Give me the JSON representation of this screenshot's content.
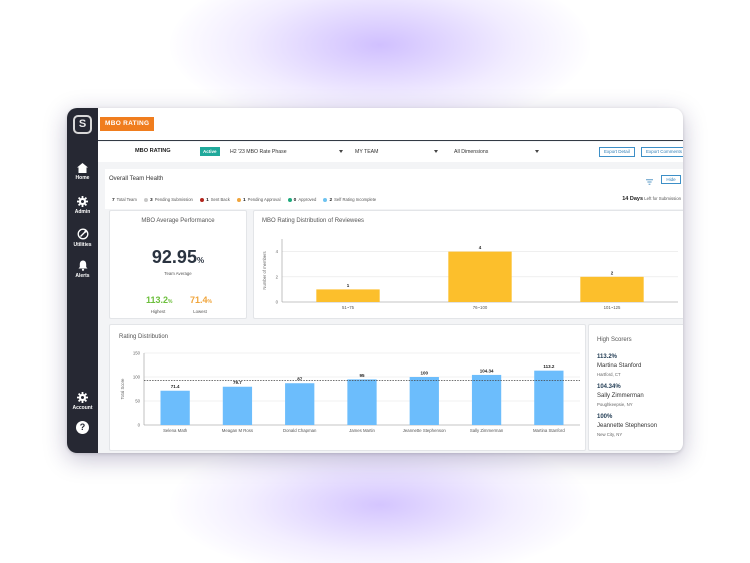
{
  "app": {
    "brand_label": "MBO RATING"
  },
  "sidebar": {
    "logo_glyph": "S",
    "items": [
      {
        "label": "Home",
        "icon": "home-icon"
      },
      {
        "label": "Admin",
        "icon": "gear-icon"
      },
      {
        "label": "Utilities",
        "icon": "utilities-icon"
      },
      {
        "label": "Alerts",
        "icon": "bell-icon"
      },
      {
        "label": "Account",
        "icon": "gear-icon"
      }
    ],
    "help_glyph": "?"
  },
  "filterbar": {
    "title": "MBO RATING",
    "status_chip": "Active",
    "phase_select": "H2 '23 MBO Rate Phase",
    "team_select": "MY TEAM",
    "dimensions_select": "All Dimensions",
    "export_detail": "Export Detail",
    "export_comments": "Export Comments"
  },
  "health": {
    "title": "Overall Team Health",
    "hide_label": "Hide",
    "statuses": [
      {
        "count": "7",
        "label": "Total Team",
        "color": ""
      },
      {
        "count": "3",
        "label": "Pending Submission",
        "color": "#c8c8c8"
      },
      {
        "count": "1",
        "label": "Sent Back",
        "color": "#b3261e"
      },
      {
        "count": "1",
        "label": "Pending Approval",
        "color": "#f0a53c"
      },
      {
        "count": "0",
        "label": "Approved",
        "color": "#1ea97c"
      },
      {
        "count": "2",
        "label": "Self Rating Incomplete",
        "color": "#6ec3f0"
      }
    ],
    "days_value": "14 Days",
    "days_label": "Left for Submission"
  },
  "performance": {
    "title": "MBO Average Performance",
    "average_value": "92.95",
    "average_unit": "%",
    "average_label": "Team Average",
    "highest_value": "113.2",
    "highest_unit": "%",
    "highest_label": "Highest",
    "lowest_value": "71.4",
    "lowest_unit": "%",
    "lowest_label": "Lowest"
  },
  "chart_data": [
    {
      "type": "bar",
      "title": "MBO Rating Distribution of Reviewees",
      "ylabel": "Number of members",
      "xlabel": "",
      "categories": [
        "51~75",
        "76~100",
        "101~125"
      ],
      "values": [
        1,
        4,
        2
      ],
      "data_labels": [
        "1",
        "4",
        "2"
      ],
      "yticks": [
        "0",
        "2",
        "4"
      ],
      "ylim": [
        0,
        5
      ],
      "color": "#fcbf2c",
      "grid": true
    },
    {
      "type": "bar",
      "title": "Rating Distribution",
      "ylabel": "Total Score",
      "xlabel": "",
      "categories": [
        "Selena Math",
        "Meagan M Ross",
        "Donald Chapman",
        "James Martin",
        "Jeannette Stephenson",
        "Sally Zimmerman",
        "Martina Stanford"
      ],
      "values": [
        71.4,
        79.7,
        87,
        95,
        100,
        104.34,
        113.2
      ],
      "data_labels": [
        "71.4",
        "79.7",
        "87",
        "95",
        "100",
        "104.34",
        "113.2"
      ],
      "yticks": [
        "0",
        "50",
        "100",
        "150"
      ],
      "ylim": [
        0,
        150
      ],
      "reference_line": 92.95,
      "color": "#6cbdfc",
      "grid": true
    }
  ],
  "high_scorers": {
    "title": "High Scorers",
    "items": [
      {
        "value": "113.2%",
        "name": "Martina Stanford",
        "location": "Hartford, CT"
      },
      {
        "value": "104.34%",
        "name": "Sally Zimmerman",
        "location": "Poughkeepsie, NY"
      },
      {
        "value": "100%",
        "name": "Jeannette Stephenson",
        "location": "New City, NY"
      }
    ]
  }
}
